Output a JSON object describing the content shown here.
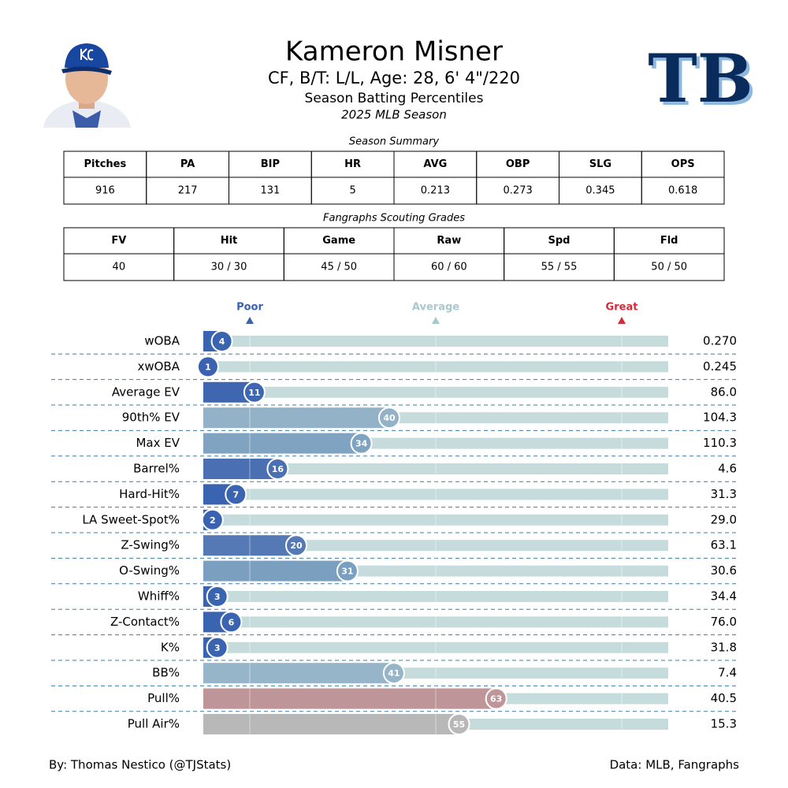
{
  "header": {
    "title": "Kameron Misner",
    "subtitle": "CF, B/T: L/L, Age: 28, 6' 4\"/220",
    "description": "Season Batting Percentiles",
    "season": "2025 MLB Season",
    "team_logo": "TB"
  },
  "season_summary": {
    "title": "Season Summary",
    "columns": [
      "Pitches",
      "PA",
      "BIP",
      "HR",
      "AVG",
      "OBP",
      "SLG",
      "OPS"
    ],
    "rows": [
      [
        "916",
        "217",
        "131",
        "5",
        "0.213",
        "0.273",
        "0.345",
        "0.618"
      ]
    ]
  },
  "scouting_grades": {
    "title": "Fangraphs Scouting Grades",
    "columns": [
      "FV",
      "Hit",
      "Game",
      "Raw",
      "Spd",
      "Fld"
    ],
    "rows": [
      [
        "40",
        "30 / 30",
        "45 / 50",
        "60 / 60",
        "55 / 55",
        "50 / 50"
      ]
    ]
  },
  "chart_data": {
    "type": "bar",
    "orientation": "horizontal",
    "categories": [
      "wOBA",
      "xwOBA",
      "Average EV",
      "90th% EV",
      "Max EV",
      "Barrel%",
      "Hard-Hit%",
      "LA Sweet-Spot%",
      "Z-Swing%",
      "O-Swing%",
      "Whiff%",
      "Z-Contact%",
      "K%",
      "BB%",
      "Pull%",
      "Pull Air%"
    ],
    "values": [
      4,
      1,
      11,
      40,
      34,
      16,
      7,
      2,
      20,
      31,
      3,
      6,
      3,
      41,
      63,
      55
    ],
    "colors": [
      "#3a63b0",
      "#3a62b0",
      "#3f67b1",
      "#93b2c8",
      "#7fa3c0",
      "#4a6fb2",
      "#3b64b0",
      "#3a62b0",
      "#5479b5",
      "#7a9fbf",
      "#3a63b0",
      "#3b64b0",
      "#3a63b0",
      "#97b5c9",
      "#be9599",
      "#b8b8b8"
    ],
    "stat_labels": [
      "0.270",
      "0.245",
      "86.0",
      "104.3",
      "110.3",
      "4.6",
      "31.3",
      "29.0",
      "63.1",
      "30.6",
      "34.4",
      "76.0",
      "31.8",
      "7.4",
      "40.5",
      "15.3"
    ],
    "xlim": [
      0,
      100
    ],
    "xticks": [
      {
        "value": 10,
        "label": "Poor"
      },
      {
        "value": 50,
        "label": "Average"
      },
      {
        "value": 90,
        "label": "Great"
      }
    ],
    "xtick_colors": [
      "#3a62b0",
      "#a8c8cc",
      "#d62a3a"
    ],
    "track_color": "#c6dcdc",
    "grid": true
  },
  "footer": {
    "credit": "By: Thomas Nestico (@TJStats)",
    "source": "Data: MLB, Fangraphs"
  }
}
